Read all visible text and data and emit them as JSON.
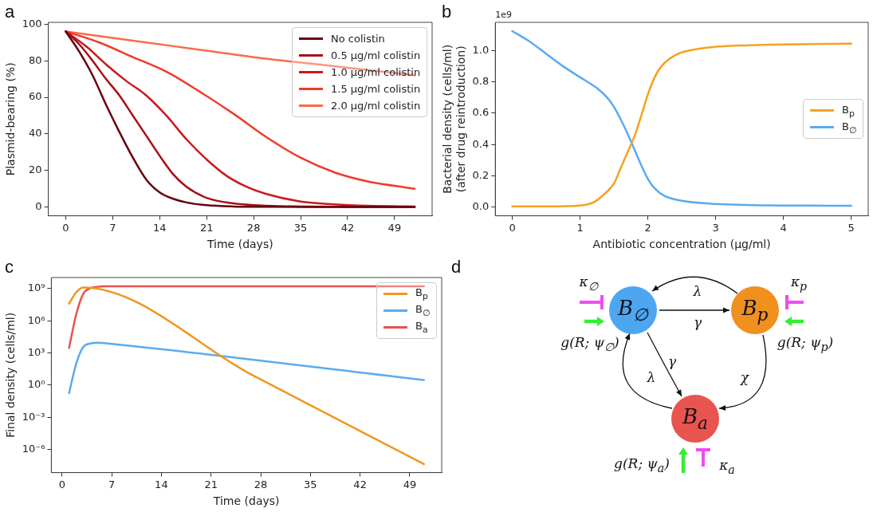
{
  "chart_data": [
    {
      "type": "line",
      "title": "a",
      "xlabel": "Time (days)",
      "ylabel": "Plasmid-bearing (%)",
      "xlim": [
        -2.6,
        54.6
      ],
      "xticks": [
        0,
        7,
        14,
        21,
        28,
        35,
        42,
        49
      ],
      "ylim": [
        -4.8,
        101
      ],
      "yticks": [
        0,
        20,
        40,
        60,
        80,
        100
      ],
      "legend": "top right",
      "series": [
        {
          "name": "No colistin",
          "color": "#67000d",
          "x": [
            0,
            2,
            4,
            6,
            8,
            10,
            12,
            14,
            16,
            18,
            21,
            25,
            30,
            52
          ],
          "values": [
            96,
            85,
            72,
            56,
            41,
            27,
            15,
            8,
            4.5,
            2.5,
            1,
            0.3,
            0.1,
            0
          ]
        },
        {
          "name": "0.5 μg/ml colistin",
          "color": "#a50f15",
          "x": [
            0,
            2,
            4,
            6,
            8,
            10,
            12,
            14,
            16,
            18,
            21,
            25,
            30,
            35,
            52
          ],
          "values": [
            96,
            89,
            80,
            70,
            61,
            50,
            39,
            28,
            18,
            11,
            5,
            2,
            0.7,
            0.3,
            0
          ]
        },
        {
          "name": "1.0 μg/ml colistin",
          "color": "#cb181d",
          "x": [
            0,
            3,
            6,
            9,
            12,
            15,
            18,
            21,
            24,
            27,
            30,
            35,
            40,
            45,
            52
          ],
          "values": [
            96,
            88,
            78,
            69,
            61,
            50,
            37,
            26,
            17,
            11,
            7,
            3,
            1.5,
            0.7,
            0.3
          ]
        },
        {
          "name": "1.5 μg/ml colistin",
          "color": "#ef3b2c",
          "x": [
            0,
            5,
            10,
            15,
            20,
            25,
            30,
            35,
            40,
            45,
            52
          ],
          "values": [
            96,
            90,
            82,
            74,
            63,
            51,
            38,
            27,
            19,
            14,
            10
          ]
        },
        {
          "name": "2.0 μg/ml colistin",
          "color": "#fb6a4a",
          "x": [
            0,
            10,
            20,
            30,
            40,
            52
          ],
          "values": [
            96,
            91,
            86,
            81,
            77,
            72
          ]
        }
      ]
    },
    {
      "type": "line",
      "title": "b",
      "xlabel": "Antibiotic concentration (μg/ml)",
      "ylabel": "Bacterial density (cells/ml)\n(after drug reintroduction)",
      "annotations": [
        "1e9"
      ],
      "xlim": [
        -0.25,
        5.25
      ],
      "xticks": [
        0,
        1,
        2,
        3,
        4,
        5
      ],
      "ylim": [
        -0.056,
        1.181
      ],
      "yticks": [
        {
          "value": 0,
          "label": "0.0"
        },
        {
          "value": 0.2,
          "label": "0.2"
        },
        {
          "value": 0.4,
          "label": "0.4"
        },
        {
          "value": 0.6,
          "label": "0.6"
        },
        {
          "value": 0.8,
          "label": "0.8"
        },
        {
          "value": 1,
          "label": "1.0"
        }
      ],
      "legend": "right",
      "series": [
        {
          "name": "B$_{p}$",
          "color": "#f5a21f",
          "x": [
            0,
            0.5,
            1,
            1.2,
            1.4,
            1.5,
            1.6,
            1.7,
            1.8,
            1.9,
            2,
            2.1,
            2.2,
            2.4,
            2.6,
            3,
            3.5,
            4,
            5
          ],
          "values": [
            0.005,
            0.005,
            0.01,
            0.03,
            0.1,
            0.15,
            0.25,
            0.35,
            0.45,
            0.58,
            0.72,
            0.83,
            0.9,
            0.97,
            1,
            1.025,
            1.035,
            1.04,
            1.045
          ]
        },
        {
          "name": "B$_{∅}$",
          "color": "#5aaaf0",
          "x": [
            0,
            0.25,
            0.5,
            0.75,
            1,
            1.25,
            1.4,
            1.5,
            1.6,
            1.7,
            1.8,
            1.9,
            2,
            2.1,
            2.25,
            2.5,
            3,
            4,
            5
          ],
          "values": [
            1.125,
            1.06,
            0.98,
            0.9,
            0.83,
            0.76,
            0.7,
            0.64,
            0.56,
            0.47,
            0.37,
            0.27,
            0.18,
            0.12,
            0.07,
            0.04,
            0.02,
            0.01,
            0.008
          ]
        }
      ]
    },
    {
      "type": "line",
      "title": "c",
      "xlabel": "Time (days)",
      "ylabel": "Final density (cells/ml)",
      "log": "y",
      "xlim": [
        -1.5,
        53.5
      ],
      "xticks": [
        0,
        7,
        14,
        21,
        28,
        35,
        42,
        49
      ],
      "ylim": [
        6.8e-09,
        11000000000.0
      ],
      "yticks": [
        {
          "value": 1e-06,
          "label": "10⁻⁶"
        },
        {
          "value": 0.001,
          "label": "10⁻³"
        },
        {
          "value": 1,
          "label": "10⁰"
        },
        {
          "value": 1000,
          "label": "10³"
        },
        {
          "value": 1000000,
          "label": "10⁶"
        },
        {
          "value": 1000000000,
          "label": "10⁹"
        }
      ],
      "legend": "top right",
      "series": [
        {
          "name": "B$_{p}$",
          "color": "#f0961e",
          "x": [
            1,
            2,
            3,
            27,
            51
          ],
          "values": [
            40000000.0,
            460000000.0,
            1300000000.0,
            7.4,
            4.3e-08
          ]
        },
        {
          "name": "B$_{∅}$",
          "color": "#5aaaf0",
          "x": [
            1,
            2,
            3,
            4,
            5,
            7,
            51
          ],
          "values": [
            0.18,
            100,
            3700,
            7600,
            9100,
            7000,
            3
          ]
        },
        {
          "name": "B$_{a}$",
          "color": "#e8524f",
          "x": [
            1,
            2,
            3,
            4,
            5,
            6,
            8,
            51
          ],
          "values": [
            3000,
            4000000.0,
            340000000.0,
            1100000000.0,
            1500000000.0,
            1650000000.0,
            1700000000.0,
            1700000000.0
          ]
        }
      ]
    },
    {
      "type": "other",
      "title": "d",
      "annotations": [
        "B$_{∅}$",
        "B$_{p}$",
        "B$_{a}$",
        "λ",
        "γ",
        "γ",
        "λ",
        "χ",
        "κ$_{∅}$",
        "κ$_{p}$",
        "κ$_{a}$",
        "g(R; ψ$_{∅}$)",
        "g(R; ψ$_{p}$)",
        "g(R; ψ$_{a}$)"
      ]
    }
  ]
}
